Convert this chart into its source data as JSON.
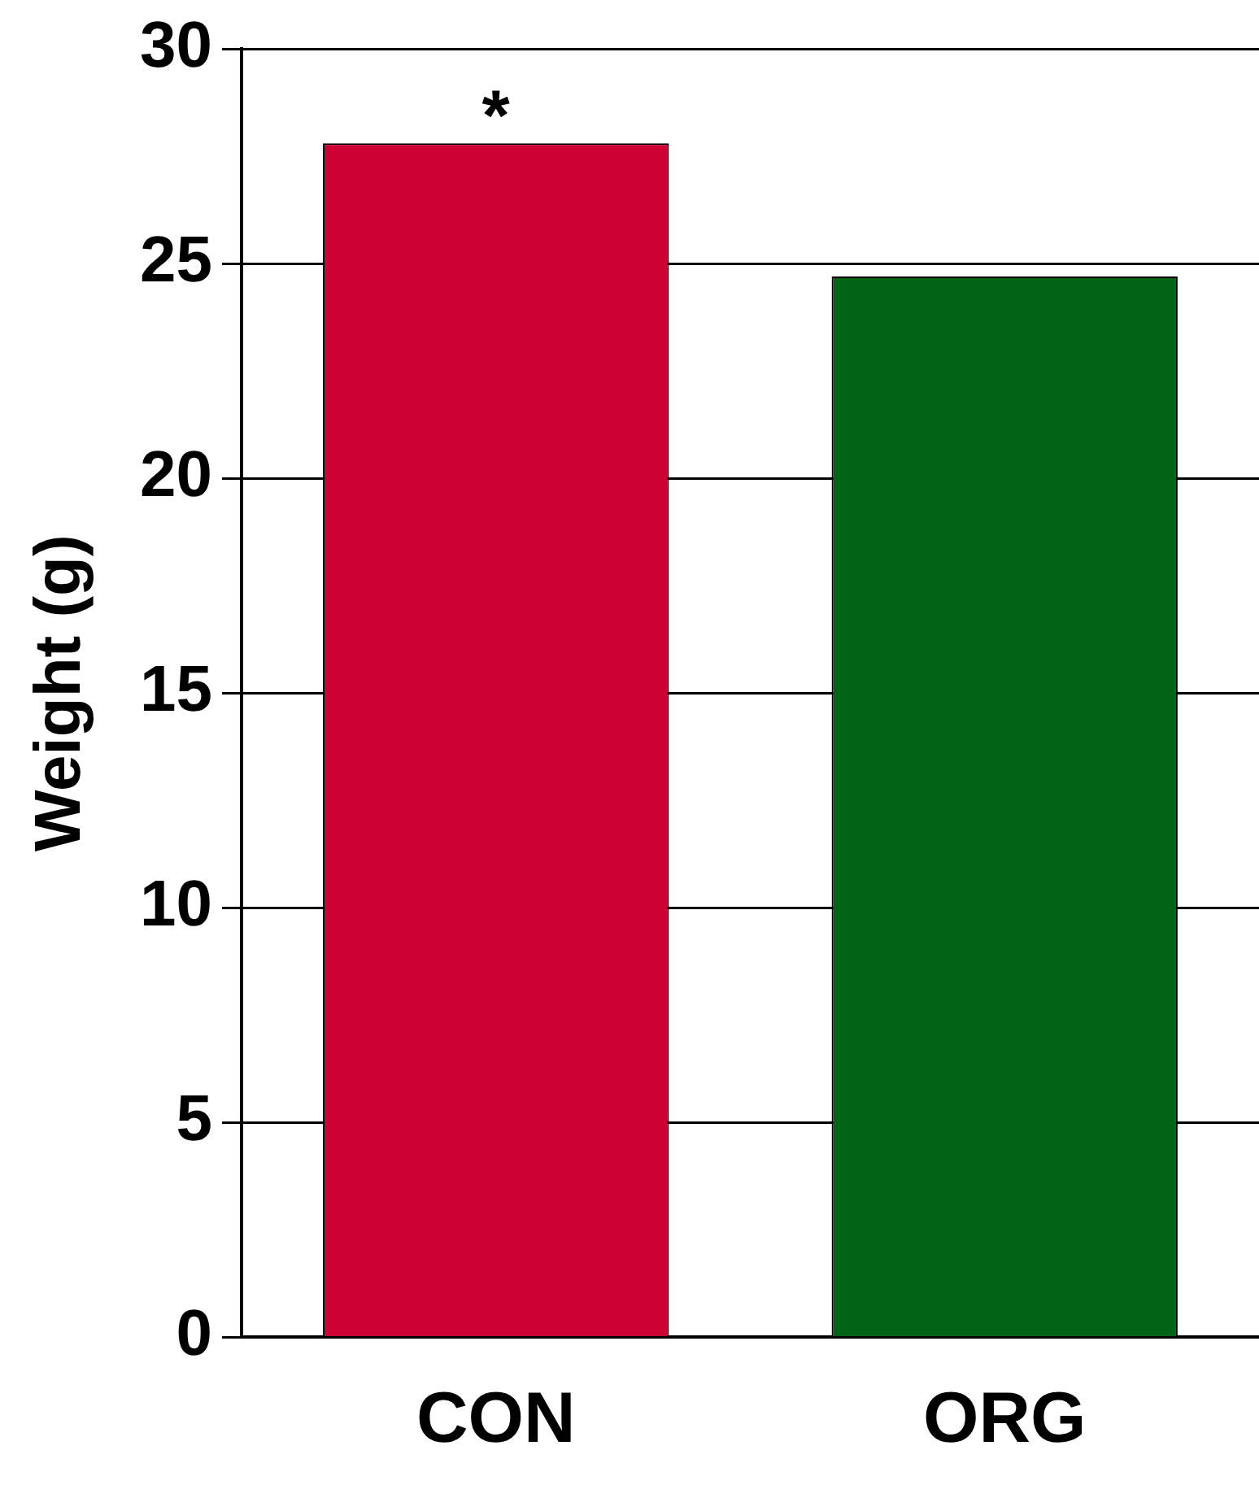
{
  "chart_data": {
    "type": "bar",
    "ylabel": "Weight (g)",
    "categories": [
      "CON",
      "ORG"
    ],
    "values": [
      27.8,
      24.7
    ],
    "colors": [
      "#cc0033",
      "#006414"
    ],
    "ylim": [
      0,
      30
    ],
    "yticks": [
      0,
      5,
      10,
      15,
      20,
      25,
      30
    ],
    "grid": "y",
    "legend": false,
    "annotations": [
      {
        "text": "*",
        "x": "CON",
        "y": 27.8
      }
    ]
  }
}
